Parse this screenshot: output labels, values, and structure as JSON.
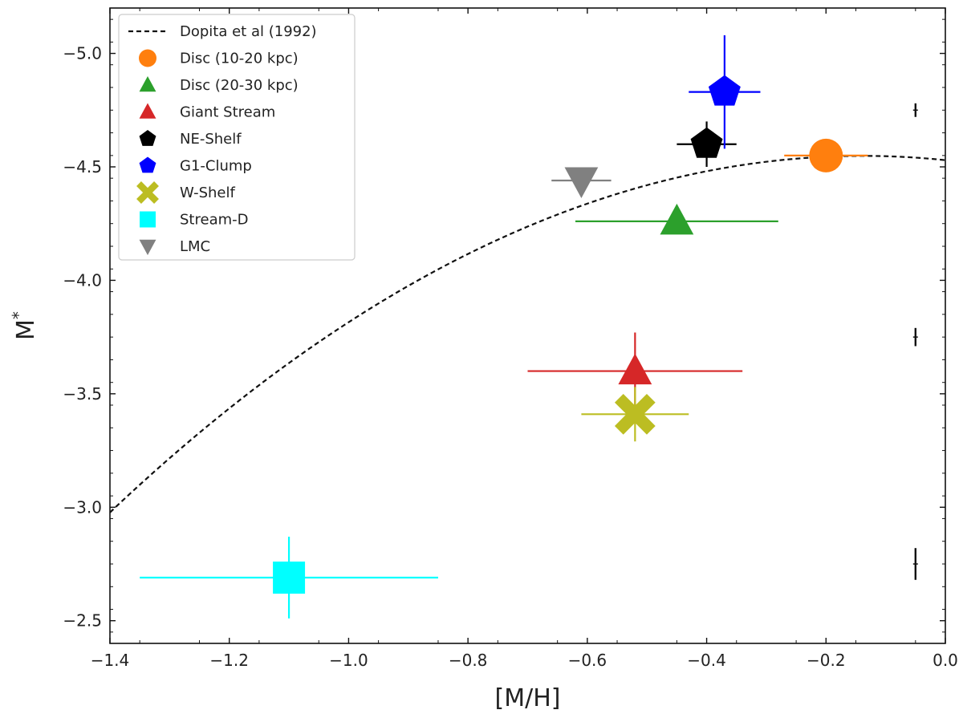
{
  "chart_data": {
    "type": "scatter",
    "title": "",
    "xlabel": "[M/H]",
    "ylabel": "M*",
    "xlim": [
      -1.4,
      0.0
    ],
    "ylim": [
      -2.4,
      -5.2
    ],
    "y_inverted": true,
    "xticks": [
      -1.4,
      -1.2,
      -1.0,
      -0.8,
      -0.6,
      -0.4,
      -0.2,
      0.0
    ],
    "xtick_labels": [
      "−1.4",
      "−1.2",
      "−1.0",
      "−0.8",
      "−0.6",
      "−0.4",
      "−0.2",
      "0.0"
    ],
    "yticks": [
      -2.5,
      -3.0,
      -3.5,
      -4.0,
      -4.5,
      -5.0
    ],
    "ytick_labels": [
      "−2.5",
      "−3.0",
      "−3.5",
      "−4.0",
      "−4.5",
      "−5.0"
    ],
    "grid": false,
    "legend_position": "upper-left",
    "curve": {
      "name": "Dopita et al (1992)",
      "style": "dashed",
      "color": "#111111",
      "note": "parabola, peak near [M/H]=-0.1",
      "x": [
        -1.4,
        -1.3,
        -1.2,
        -1.1,
        -1.0,
        -0.9,
        -0.8,
        -0.7,
        -0.6,
        -0.5,
        -0.4,
        -0.3,
        -0.2,
        -0.1,
        0.0
      ],
      "y": [
        -2.98,
        -3.22,
        -3.43,
        -3.63,
        -3.81,
        -3.98,
        -4.12,
        -4.24,
        -4.34,
        -4.42,
        -4.48,
        -4.52,
        -4.54,
        -4.55,
        -4.53
      ]
    },
    "series": [
      {
        "name": "Disc (10-20 kpc)",
        "marker": "circle",
        "color": "#ff7f0e",
        "x": -0.2,
        "y": -4.55,
        "xerr": [
          0.07,
          0.07
        ],
        "yerr": [
          0.0,
          0.0
        ]
      },
      {
        "name": "Disc (20-30 kpc)",
        "marker": "triangle-up",
        "color": "#2ca02c",
        "x": -0.45,
        "y": -4.26,
        "xerr": [
          0.17,
          0.17
        ],
        "yerr": [
          0.0,
          0.0
        ]
      },
      {
        "name": "Giant Stream",
        "marker": "triangle-up",
        "color": "#d62728",
        "x": -0.52,
        "y": -3.6,
        "xerr": [
          0.18,
          0.18
        ],
        "yerr": [
          0.17,
          0.17
        ]
      },
      {
        "name": "NE-Shelf",
        "marker": "pentagon",
        "color": "#000000",
        "x": -0.4,
        "y": -4.6,
        "xerr": [
          0.05,
          0.05
        ],
        "yerr": [
          0.1,
          0.1
        ]
      },
      {
        "name": "G1-Clump",
        "marker": "pentagon",
        "color": "#0000ff",
        "x": -0.37,
        "y": -4.83,
        "xerr": [
          0.06,
          0.06
        ],
        "yerr": [
          0.25,
          0.25
        ]
      },
      {
        "name": "W-Shelf",
        "marker": "x-filled",
        "color": "#bcbd22",
        "x": -0.52,
        "y": -3.41,
        "xerr": [
          0.09,
          0.09
        ],
        "yerr": [
          0.12,
          0.12
        ]
      },
      {
        "name": "Stream-D",
        "marker": "square",
        "color": "#00ffff",
        "x": -1.1,
        "y": -2.69,
        "xerr": [
          0.25,
          0.25
        ],
        "yerr": [
          0.18,
          0.18
        ]
      },
      {
        "name": "LMC",
        "marker": "triangle-down",
        "color": "#808080",
        "x": -0.61,
        "y": -4.44,
        "xerr": [
          0.05,
          0.05
        ],
        "yerr": [
          0.0,
          0.0
        ]
      }
    ],
    "reference_error_bars": [
      {
        "x": -0.05,
        "y": -4.75,
        "yerr": 0.03
      },
      {
        "x": -0.05,
        "y": -3.75,
        "yerr": 0.04
      },
      {
        "x": -0.05,
        "y": -2.75,
        "yerr": 0.07
      }
    ]
  }
}
